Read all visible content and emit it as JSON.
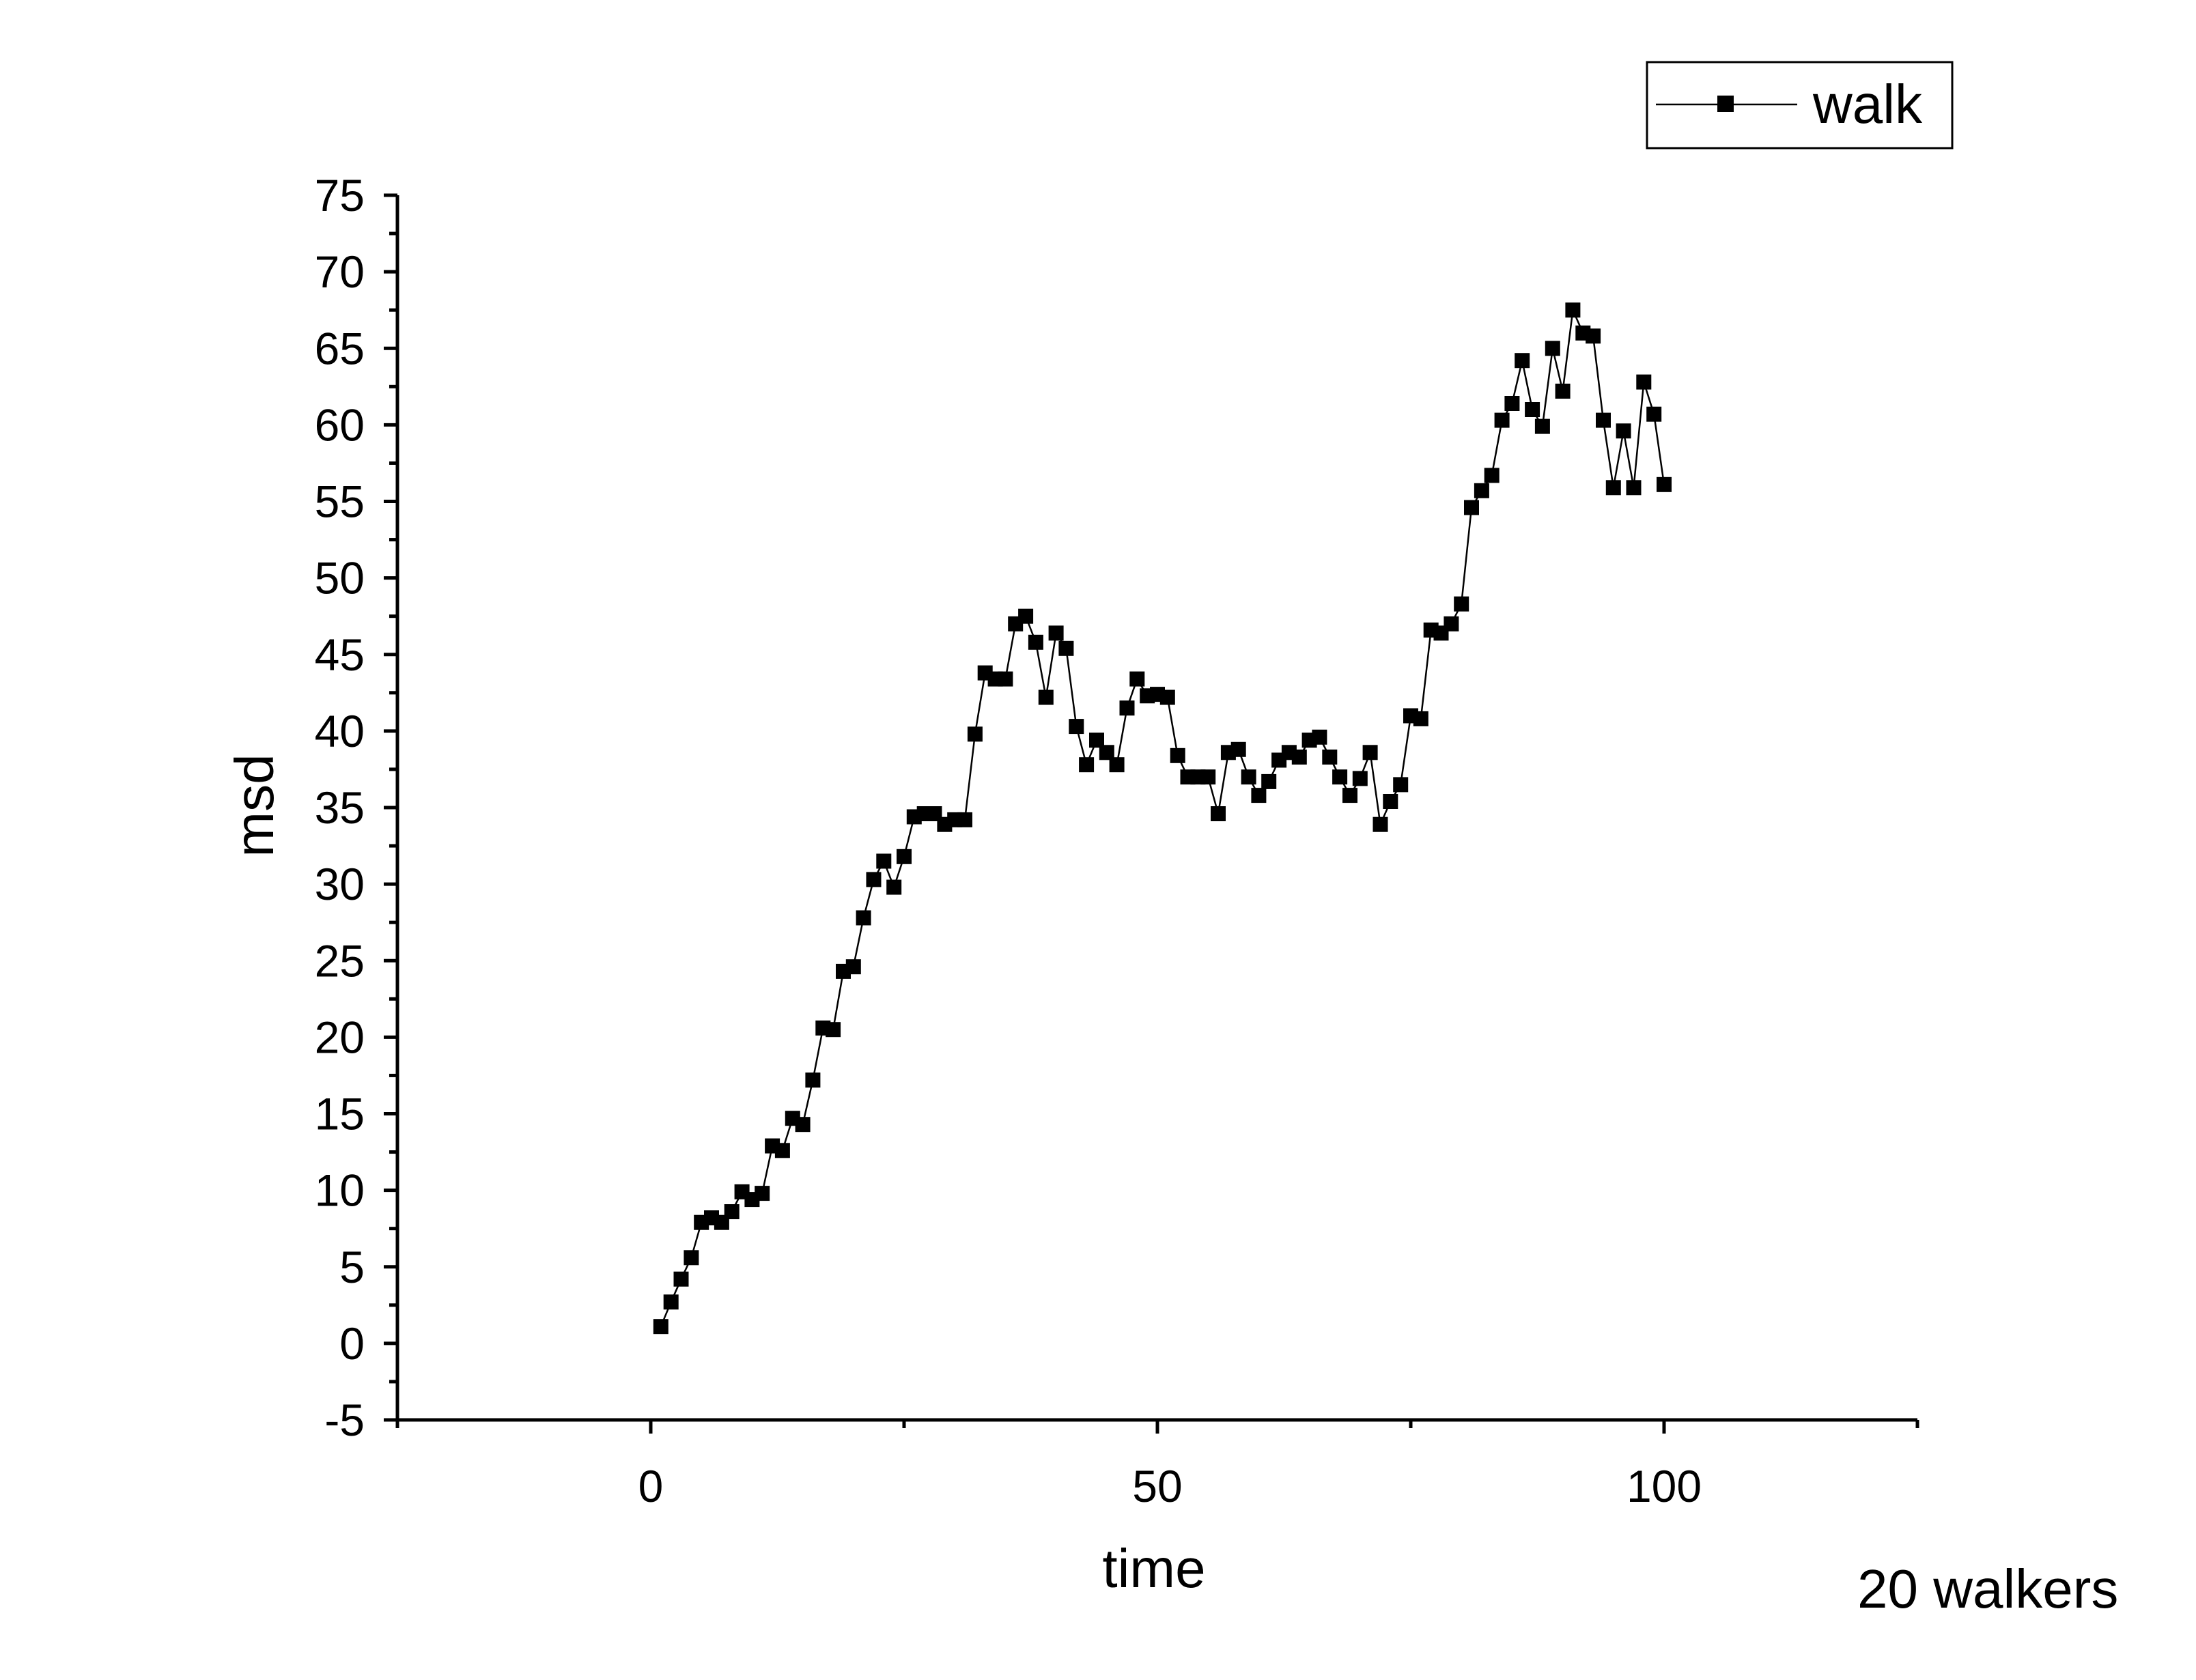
{
  "chart_data": {
    "type": "line",
    "title": "",
    "xlabel": "time",
    "ylabel": "msd",
    "xlim": [
      -25,
      125
    ],
    "ylim": [
      -5,
      75
    ],
    "x_ticks": [
      "0",
      "50",
      "100"
    ],
    "x_tick_values": [
      0,
      50,
      100
    ],
    "y_ticks": [
      "75",
      "70",
      "65",
      "60",
      "55",
      "50",
      "45",
      "40",
      "35",
      "30",
      "25",
      "20",
      "15",
      "10",
      "5",
      "0",
      "-5"
    ],
    "y_tick_values": [
      75,
      70,
      65,
      60,
      55,
      50,
      45,
      40,
      35,
      30,
      25,
      20,
      15,
      10,
      5,
      0,
      -5
    ],
    "grid": false,
    "legend_position": "top-right",
    "series": [
      {
        "name": "walk",
        "marker": "square",
        "color": "#000000",
        "x": [
          1,
          2,
          3,
          4,
          5,
          6,
          7,
          8,
          9,
          10,
          11,
          12,
          13,
          14,
          15,
          16,
          17,
          18,
          19,
          20,
          21,
          22,
          23,
          24,
          25,
          26,
          27,
          28,
          29,
          30,
          31,
          32,
          33,
          34,
          35,
          36,
          37,
          38,
          39,
          40,
          41,
          42,
          43,
          44,
          45,
          46,
          47,
          48,
          49,
          50,
          51,
          52,
          53,
          54,
          55,
          56,
          57,
          58,
          59,
          60,
          61,
          62,
          63,
          64,
          65,
          66,
          67,
          68,
          69,
          70,
          71,
          72,
          73,
          74,
          75,
          76,
          77,
          78,
          79,
          80,
          81,
          82,
          83,
          84,
          85,
          86,
          87,
          88,
          89,
          90,
          91,
          92,
          93,
          94,
          95,
          96,
          97,
          98,
          99,
          100
        ],
        "values": [
          1.1,
          2.7,
          4.2,
          5.6,
          7.9,
          8.2,
          7.9,
          8.6,
          9.9,
          9.4,
          9.8,
          12.9,
          12.6,
          14.7,
          14.3,
          17.2,
          20.6,
          20.5,
          24.3,
          24.6,
          27.8,
          30.3,
          31.5,
          29.8,
          31.8,
          34.4,
          34.6,
          34.6,
          33.9,
          34.2,
          34.2,
          39.8,
          43.8,
          43.4,
          43.4,
          47.0,
          47.5,
          45.8,
          42.2,
          46.4,
          45.4,
          40.3,
          37.8,
          39.4,
          38.6,
          37.8,
          41.5,
          43.4,
          42.3,
          42.4,
          42.2,
          38.4,
          37.0,
          37.0,
          37.0,
          34.6,
          38.6,
          38.8,
          37.0,
          35.8,
          36.7,
          38.1,
          38.6,
          38.3,
          39.4,
          39.6,
          38.3,
          37.0,
          35.8,
          36.9,
          38.6,
          33.9,
          35.4,
          36.5,
          41.0,
          40.8,
          46.6,
          46.4,
          47.0,
          48.3,
          54.6,
          55.7,
          56.7,
          60.3,
          61.4,
          64.2,
          61.0,
          59.9,
          65.0,
          62.2,
          67.5,
          66.0,
          65.8,
          60.3,
          55.9,
          59.6,
          55.9,
          62.8,
          60.7,
          56.1
        ]
      }
    ],
    "annotations": [
      "20 walkers"
    ]
  }
}
